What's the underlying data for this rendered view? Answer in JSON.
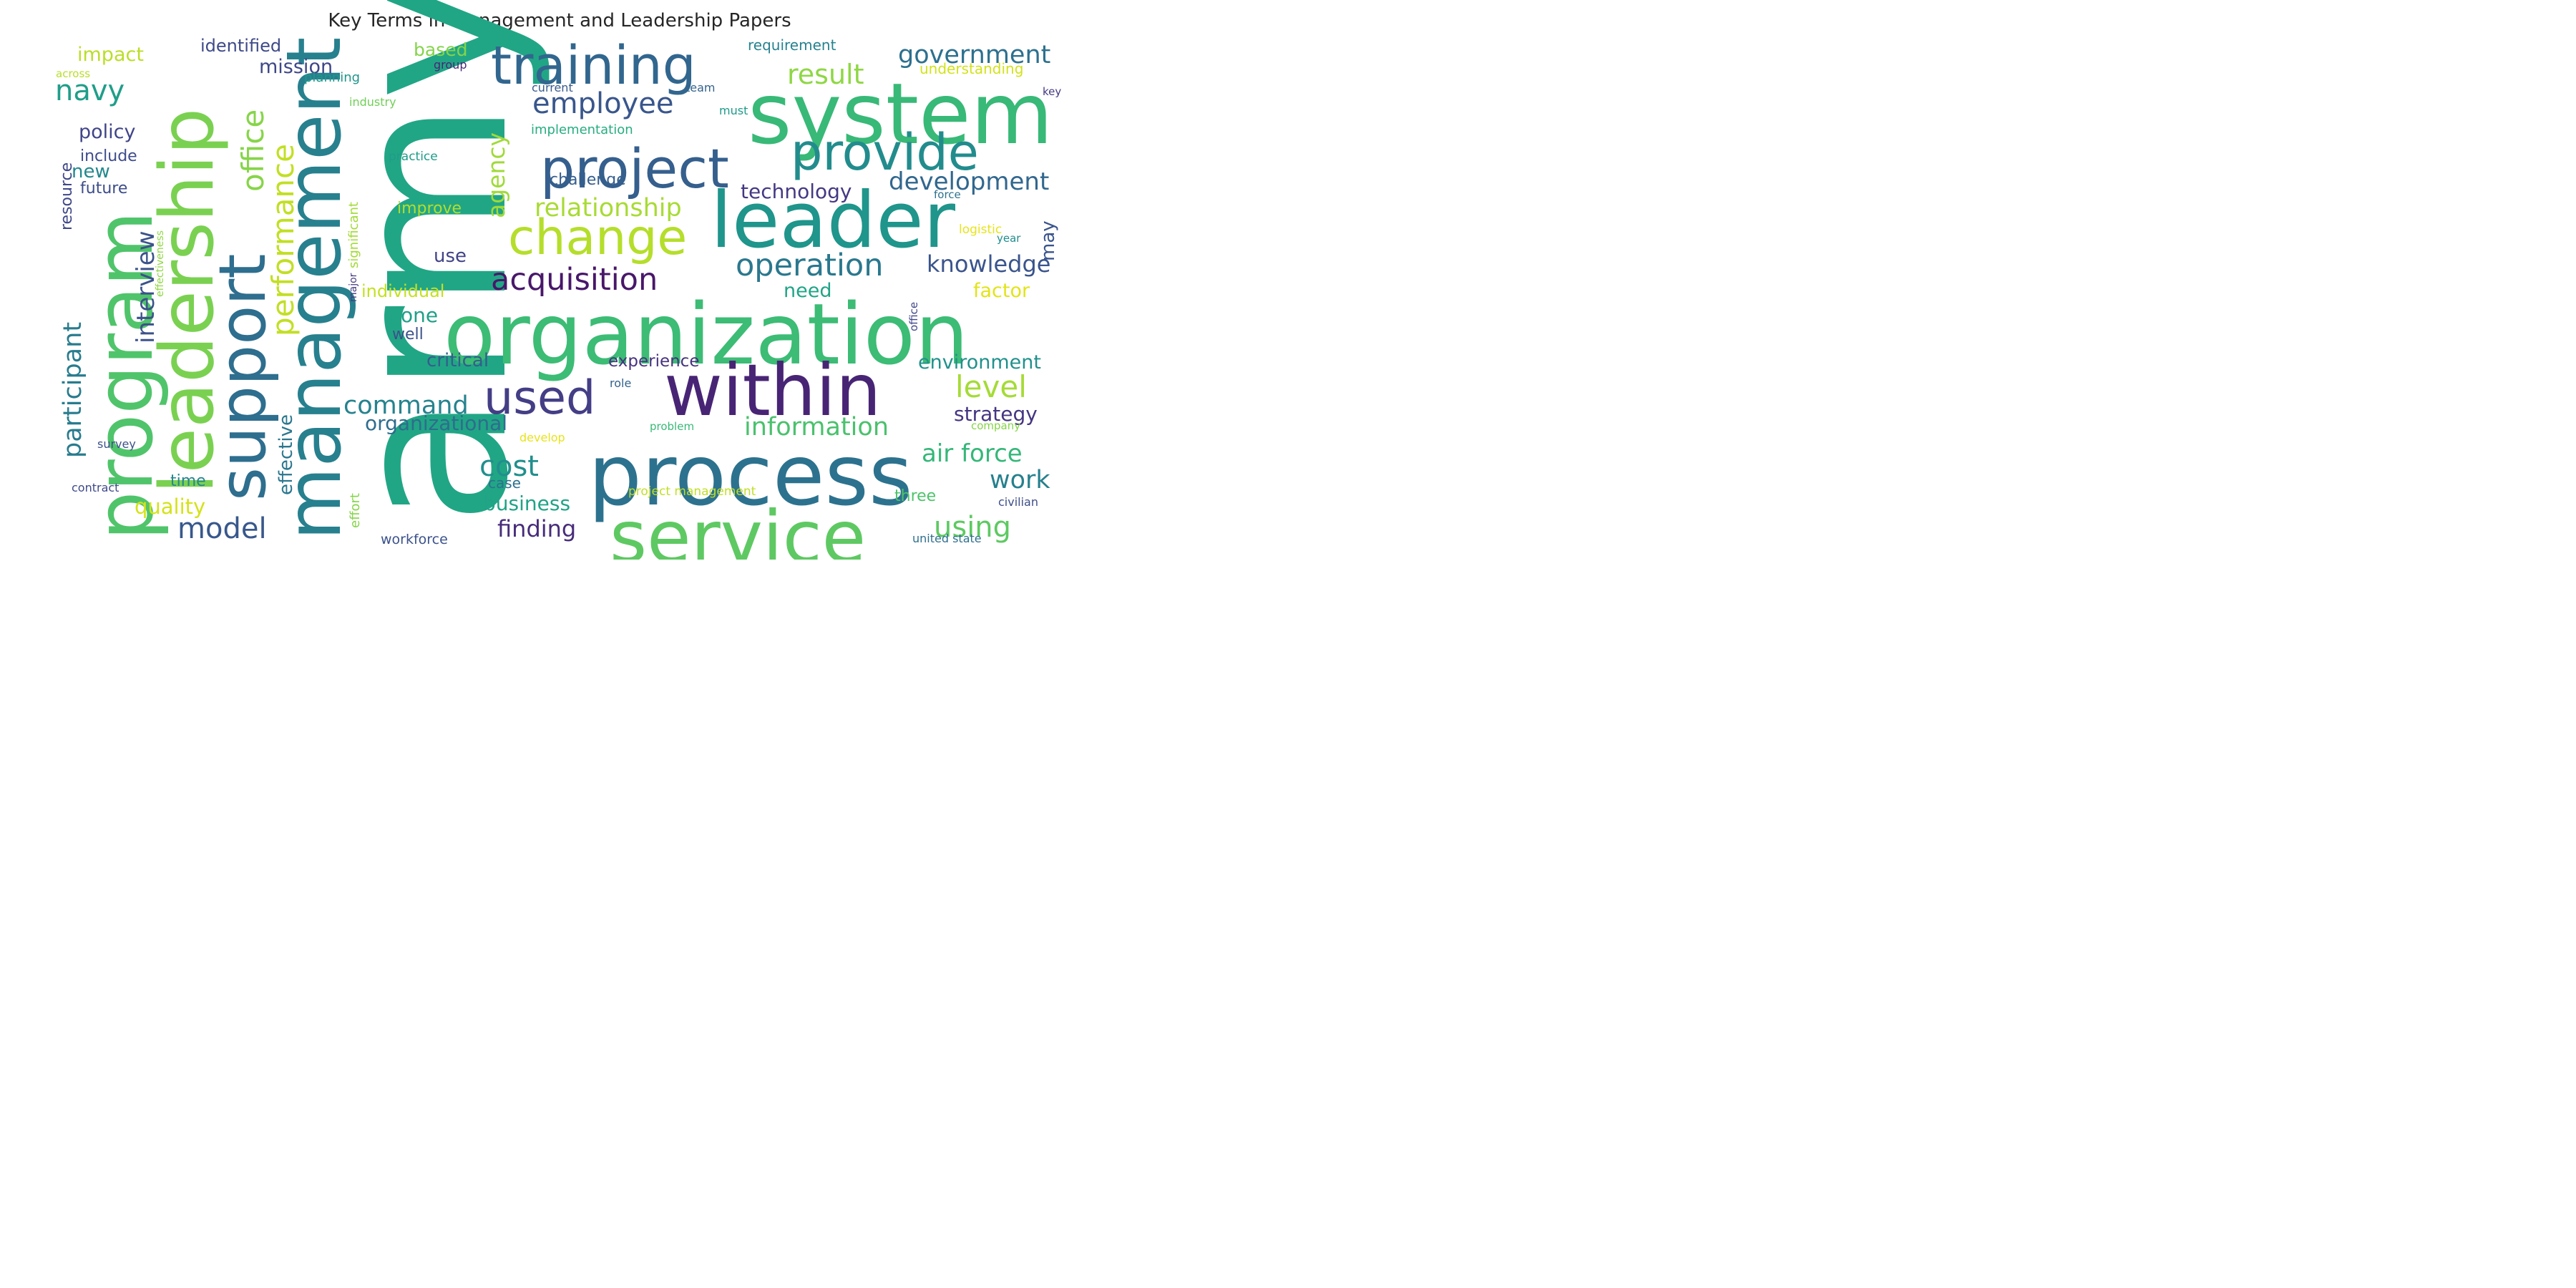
{
  "title": "Key Terms in Management and Leadership Papers",
  "words": [
    {
      "text": "army",
      "color": "#21a685"
    },
    {
      "text": "organization",
      "color": "#3cbc75"
    },
    {
      "text": "system",
      "color": "#38b977"
    },
    {
      "text": "process",
      "color": "#2c728e"
    },
    {
      "text": "leader",
      "color": "#1f958b"
    },
    {
      "text": "leadership",
      "color": "#7ad151"
    },
    {
      "text": "program",
      "color": "#50c46a"
    },
    {
      "text": "management",
      "color": "#27808e"
    },
    {
      "text": "service",
      "color": "#5ec962"
    },
    {
      "text": "within",
      "color": "#482475"
    },
    {
      "text": "support",
      "color": "#2e6e8e"
    },
    {
      "text": "training",
      "color": "#31668e"
    },
    {
      "text": "project",
      "color": "#355f8d"
    },
    {
      "text": "provide",
      "color": "#228c8d"
    },
    {
      "text": "change",
      "color": "#b5de2b"
    },
    {
      "text": "used",
      "color": "#433e85"
    },
    {
      "text": "acquisition",
      "color": "#481769"
    },
    {
      "text": "operation",
      "color": "#2a788e"
    },
    {
      "text": "office",
      "color": "#86d549"
    },
    {
      "text": "performance",
      "color": "#c2df23"
    },
    {
      "text": "employee",
      "color": "#39568c"
    },
    {
      "text": "result",
      "color": "#8fd744"
    },
    {
      "text": "government",
      "color": "#2d708e"
    },
    {
      "text": "development",
      "color": "#31678e"
    },
    {
      "text": "relationship",
      "color": "#a8db34"
    },
    {
      "text": "navy",
      "color": "#1f9e89"
    },
    {
      "text": "participant",
      "color": "#287c8e"
    },
    {
      "text": "interview",
      "color": "#3b528b"
    },
    {
      "text": "agency",
      "color": "#a0da39"
    },
    {
      "text": "knowledge",
      "color": "#3a548c"
    },
    {
      "text": "technology",
      "color": "#443983"
    },
    {
      "text": "information",
      "color": "#4ac16d"
    },
    {
      "text": "command",
      "color": "#25838e"
    },
    {
      "text": "organizational",
      "color": "#2e6d8e"
    },
    {
      "text": "cost",
      "color": "#218f8d"
    },
    {
      "text": "model",
      "color": "#38588c"
    },
    {
      "text": "air force",
      "color": "#35b779"
    },
    {
      "text": "using",
      "color": "#5ec962"
    },
    {
      "text": "level",
      "color": "#a5db36"
    },
    {
      "text": "environment",
      "color": "#21918c"
    },
    {
      "text": "strategy",
      "color": "#453581"
    },
    {
      "text": "work",
      "color": "#27808e"
    },
    {
      "text": "experience",
      "color": "#46327e"
    },
    {
      "text": "finding",
      "color": "#472c7a"
    },
    {
      "text": "business",
      "color": "#20a386"
    },
    {
      "text": "effective",
      "color": "#2a778e"
    },
    {
      "text": "quality",
      "color": "#d5e21a"
    },
    {
      "text": "policy",
      "color": "#404588"
    },
    {
      "text": "mission",
      "color": "#3f4788"
    },
    {
      "text": "impact",
      "color": "#bade28"
    },
    {
      "text": "identified",
      "color": "#3e4a89"
    },
    {
      "text": "based",
      "color": "#84d44b"
    },
    {
      "text": "resource",
      "color": "#3f4889"
    },
    {
      "text": "include",
      "color": "#3e4c8a"
    },
    {
      "text": "new",
      "color": "#23888e"
    },
    {
      "text": "future",
      "color": "#3d4d8a"
    },
    {
      "text": "critical",
      "color": "#345e8d"
    },
    {
      "text": "one",
      "color": "#1fa088"
    },
    {
      "text": "well",
      "color": "#3b518b"
    },
    {
      "text": "use",
      "color": "#414487"
    },
    {
      "text": "need",
      "color": "#20a486"
    },
    {
      "text": "factor",
      "color": "#e2e418"
    },
    {
      "text": "may",
      "color": "#3a548c"
    },
    {
      "text": "improve",
      "color": "#b2dd2d"
    },
    {
      "text": "individual",
      "color": "#c5e021"
    },
    {
      "text": "significant",
      "color": "#a2da37"
    },
    {
      "text": "challenge",
      "color": "#355e8d"
    },
    {
      "text": "implementation",
      "color": "#27ad81"
    },
    {
      "text": "practice",
      "color": "#1e9c89"
    },
    {
      "text": "industry",
      "color": "#71cf57"
    },
    {
      "text": "planning",
      "color": "#1f968b"
    },
    {
      "text": "current",
      "color": "#375a8c"
    },
    {
      "text": "team",
      "color": "#33638d"
    },
    {
      "text": "group",
      "color": "#482677"
    },
    {
      "text": "requirement",
      "color": "#26828e"
    },
    {
      "text": "understanding",
      "color": "#d2e21b"
    },
    {
      "text": "must",
      "color": "#1f9a8a"
    },
    {
      "text": "key",
      "color": "#443a83"
    },
    {
      "text": "across",
      "color": "#b8de29"
    },
    {
      "text": "force",
      "color": "#2d718e"
    },
    {
      "text": "logistic",
      "color": "#e7e419"
    },
    {
      "text": "year",
      "color": "#228d8d"
    },
    {
      "text": "effectiveness",
      "color": "#90d743"
    },
    {
      "text": "major",
      "color": "#453882"
    },
    {
      "text": "office",
      "color": "#3f4788"
    },
    {
      "text": "role",
      "color": "#33638d"
    },
    {
      "text": "problem",
      "color": "#38b977"
    },
    {
      "text": "company",
      "color": "#86d549"
    },
    {
      "text": "develop",
      "color": "#e8e419"
    },
    {
      "text": "survey",
      "color": "#3b528b"
    },
    {
      "text": "time",
      "color": "#24868e"
    },
    {
      "text": "contract",
      "color": "#3e4989"
    },
    {
      "text": "effort",
      "color": "#86d549"
    },
    {
      "text": "case",
      "color": "#2c718e"
    },
    {
      "text": "project management",
      "color": "#c0df25"
    },
    {
      "text": "three",
      "color": "#4ec36b"
    },
    {
      "text": "civilian",
      "color": "#3d4e8a"
    },
    {
      "text": "workforce",
      "color": "#3b528b"
    },
    {
      "text": "united state",
      "color": "#2e6f8e"
    }
  ]
}
